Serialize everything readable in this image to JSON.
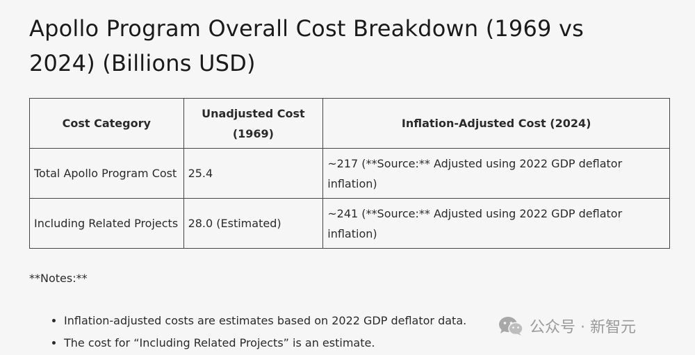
{
  "title": "Apollo Program Overall Cost Breakdown (1969 vs 2024) (Billions USD)",
  "table": {
    "headers": [
      "Cost Category",
      "Unadjusted Cost (1969)",
      "Inflation-Adjusted Cost (2024)"
    ],
    "rows": [
      [
        "Total Apollo Program Cost",
        "25.4",
        "~217 (**Source:** Adjusted using 2022 GDP deflator inflation)"
      ],
      [
        "Including Related Projects",
        "28.0 (Estimated)",
        "~241 (**Source:** Adjusted using 2022 GDP deflator inflation)"
      ]
    ]
  },
  "notes": {
    "heading": "**Notes:**",
    "items": [
      "Inflation-adjusted costs are estimates based on 2022 GDP deflator data.",
      "The cost for “Including Related Projects” is an estimate."
    ]
  },
  "watermark": {
    "text": "公众号 · 新智元",
    "icon": "wechat-icon"
  }
}
